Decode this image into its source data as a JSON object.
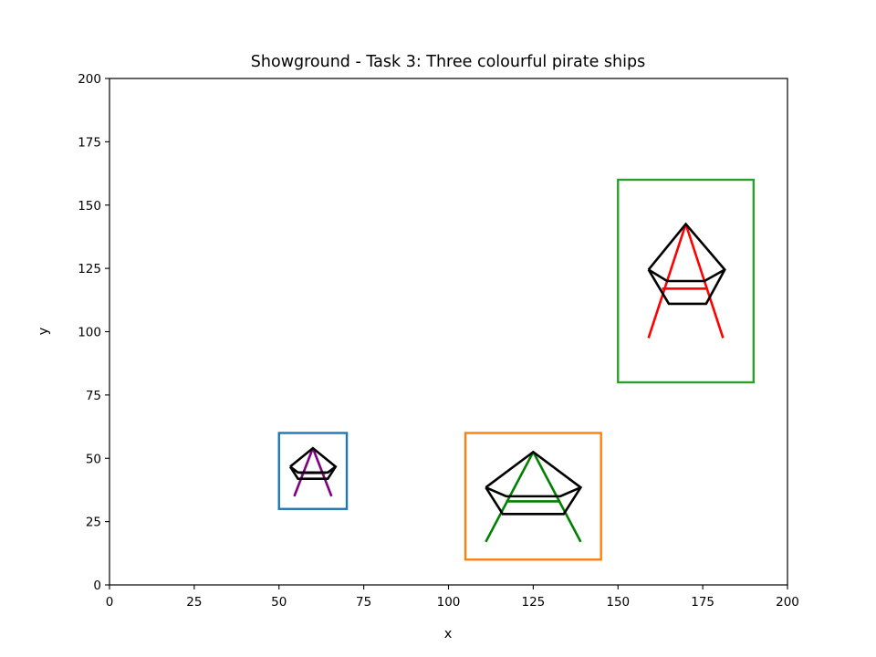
{
  "chart_data": {
    "type": "line",
    "title": "Showground - Task 3: Three colourful pirate ships",
    "xlabel": "x",
    "ylabel": "y",
    "xlim": [
      0,
      200
    ],
    "ylim": [
      0,
      200
    ],
    "xticks": [
      "0",
      "25",
      "50",
      "75",
      "100",
      "125",
      "150",
      "175",
      "200"
    ],
    "yticks": [
      "0",
      "25",
      "50",
      "75",
      "100",
      "125",
      "150",
      "175",
      "200"
    ],
    "grid": false,
    "colors": {
      "box_blue": "#1f77b4",
      "box_orange": "#ff7f0e",
      "box_green": "#2ca02c",
      "hull": "#000000"
    },
    "ships": [
      {
        "box": {
          "x0": 50,
          "y0": 30,
          "x1": 70,
          "y1": 60,
          "color": "#1f77b4"
        },
        "hull_outer": [
          [
            53.3,
            46.7
          ],
          [
            60,
            54
          ],
          [
            66.7,
            46.7
          ],
          [
            64.4,
            41.9
          ],
          [
            55.6,
            41.9
          ],
          [
            53.3,
            46.7
          ]
        ],
        "hull_inner": [
          [
            53.3,
            46.7
          ],
          [
            55.6,
            44.4
          ],
          [
            64.4,
            44.4
          ],
          [
            66.7,
            46.7
          ]
        ],
        "mast": {
          "color": "#800080",
          "left": [
            [
              54.5,
              35
            ],
            [
              60,
              54
            ]
          ],
          "right": [
            [
              60,
              54
            ],
            [
              65.5,
              35
            ]
          ],
          "crossbar": [
            [
              56.2,
              44.2
            ],
            [
              63.8,
              44.2
            ]
          ]
        }
      },
      {
        "box": {
          "x0": 105,
          "y0": 10,
          "x1": 145,
          "y1": 60,
          "color": "#ff7f0e"
        },
        "hull_outer": [
          [
            111,
            38.5
          ],
          [
            125,
            52.5
          ],
          [
            139,
            38.5
          ],
          [
            134,
            28
          ],
          [
            116,
            28
          ],
          [
            111,
            38.5
          ]
        ],
        "hull_inner": [
          [
            111,
            38.5
          ],
          [
            117,
            35
          ],
          [
            133,
            35
          ],
          [
            139,
            38.5
          ]
        ],
        "mast": {
          "color": "#008000",
          "left": [
            [
              111,
              17
            ],
            [
              125,
              52.5
            ]
          ],
          "right": [
            [
              125,
              52.5
            ],
            [
              139,
              17
            ]
          ],
          "crossbar": [
            [
              117,
              33
            ],
            [
              133,
              33
            ]
          ]
        }
      },
      {
        "box": {
          "x0": 150,
          "y0": 80,
          "x1": 190,
          "y1": 160,
          "color": "#2ca02c"
        },
        "hull_outer": [
          [
            159,
            124.5
          ],
          [
            170,
            142.5
          ],
          [
            181.5,
            124.5
          ],
          [
            176,
            111
          ],
          [
            165,
            111
          ],
          [
            159,
            124.5
          ]
        ],
        "hull_inner": [
          [
            159,
            124.5
          ],
          [
            164.5,
            120
          ],
          [
            175.5,
            120
          ],
          [
            181.5,
            124.5
          ]
        ],
        "mast": {
          "color": "#ff0000",
          "left": [
            [
              159,
              97.5
            ],
            [
              170,
              142.5
            ]
          ],
          "right": [
            [
              170,
              142.5
            ],
            [
              181,
              97.5
            ]
          ],
          "crossbar": [
            [
              163,
              117
            ],
            [
              176,
              117
            ]
          ]
        }
      }
    ]
  }
}
